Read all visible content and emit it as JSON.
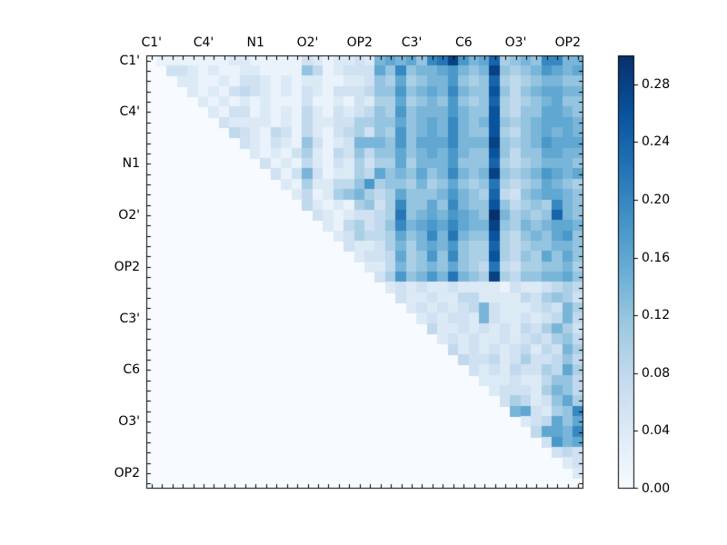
{
  "chart_data": {
    "type": "heatmap",
    "title": "",
    "x_labels": [
      "C1'",
      "C4'",
      "N1",
      "O2'",
      "OP2",
      "C3'",
      "C6",
      "O3'",
      "OP2"
    ],
    "y_labels": [
      "C1'",
      "C4'",
      "N1",
      "O2'",
      "OP2",
      "C3'",
      "C6",
      "O3'",
      "OP2"
    ],
    "label_cell_indices": [
      0,
      5,
      10,
      15,
      20,
      25,
      30,
      35,
      40
    ],
    "n": 42,
    "vmin": 0.0,
    "vmax": 0.3,
    "colorbar_tick_labels": [
      "0.00",
      "0.04",
      "0.08",
      "0.12",
      "0.16",
      "0.20",
      "0.24",
      "0.28"
    ],
    "colorbar_tick_values": [
      0.0,
      0.04,
      0.08,
      0.12,
      0.16,
      0.2,
      0.24,
      0.28
    ],
    "colormap": {
      "name": "Blues",
      "anchors": [
        [
          0.0,
          "#f7fbff"
        ],
        [
          0.125,
          "#deebf7"
        ],
        [
          0.25,
          "#c6dbef"
        ],
        [
          0.375,
          "#9ecae1"
        ],
        [
          0.5,
          "#6baed6"
        ],
        [
          0.625,
          "#4292c6"
        ],
        [
          0.75,
          "#2171b5"
        ],
        [
          0.875,
          "#08519c"
        ],
        [
          1.0,
          "#08306b"
        ]
      ]
    },
    "value_encoding": {
      "description": "rows_upper[i] encodes cells of row i for columns i+1..41 as single hex digits; value = digit * 0.02",
      "digit_scale": 0.02
    },
    "lower_triangle_value": 0.0,
    "diagonal_value": 0.0,
    "rows_upper": [
      "11111112211111321223278786ABE978C5676AA77",
      "3321211221111641233386A67789767E65679878",
      "221121332121221122365856779656C54567766",
      "2121343212132133346696787A766D64678877",
      "2121212111311213255856769656C54567866",
      "213312121421323465967779766D54668876",
      "3222212142233556686787A767D65678887",
      "432143142134536596787A766D54678787",
      "32132163123777696888A777E65679888",
      "21213521436466867879766D64668877",
      "3121421325355857779666C54567776",
      "31373122548676867A767E65679878",
      "21522446956657568656B54568765",
      "2412567545866679765C43678876",
      "421215635A6686A766D64565A76",
      "32123345B67879876F75656C76",
      "2145346A7898A877E65767887",
      "235445867A7B766D54676896",
      "32235757879655C54566776",
      "233485696A655D54658686",
      "224756768654B43556675",
      "3596797B765E54667786",
      "2323223222213223454",
      "322322442222435653",
      "23232347322234375",
      "2323327322323474",
      "422323232435753",
      "23232232343564",
      "4232323424375",
      "433423533464",
      "32324335485",
      "2223224664",
      "233325764",
      "35423685",
      "783256A",
      "234868",
      "4887A",
      "3978",
      "343",
      "23",
      "2",
      ""
    ]
  }
}
